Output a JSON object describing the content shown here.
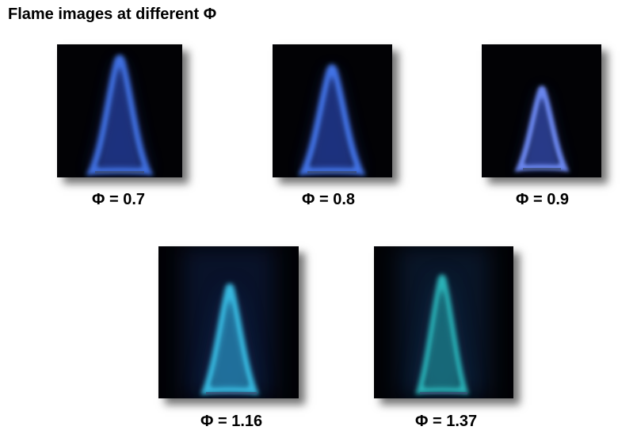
{
  "title": "Flame images at different Φ",
  "panels": [
    {
      "label": "Φ = 0.7",
      "flame_color": "#3f6fe0",
      "glow_color": "#1a2e8a"
    },
    {
      "label": "Φ = 0.8",
      "flame_color": "#4273e6",
      "glow_color": "#1a2e8a"
    },
    {
      "label": "Φ = 0.9",
      "flame_color": "#6b86ee",
      "glow_color": "#1f2f80"
    },
    {
      "label": "Φ = 1.16",
      "flame_color": "#39b9e0",
      "glow_color": "#14306e"
    },
    {
      "label": "Φ = 1.37",
      "flame_color": "#2bb3b8",
      "glow_color": "#163a6a"
    }
  ]
}
